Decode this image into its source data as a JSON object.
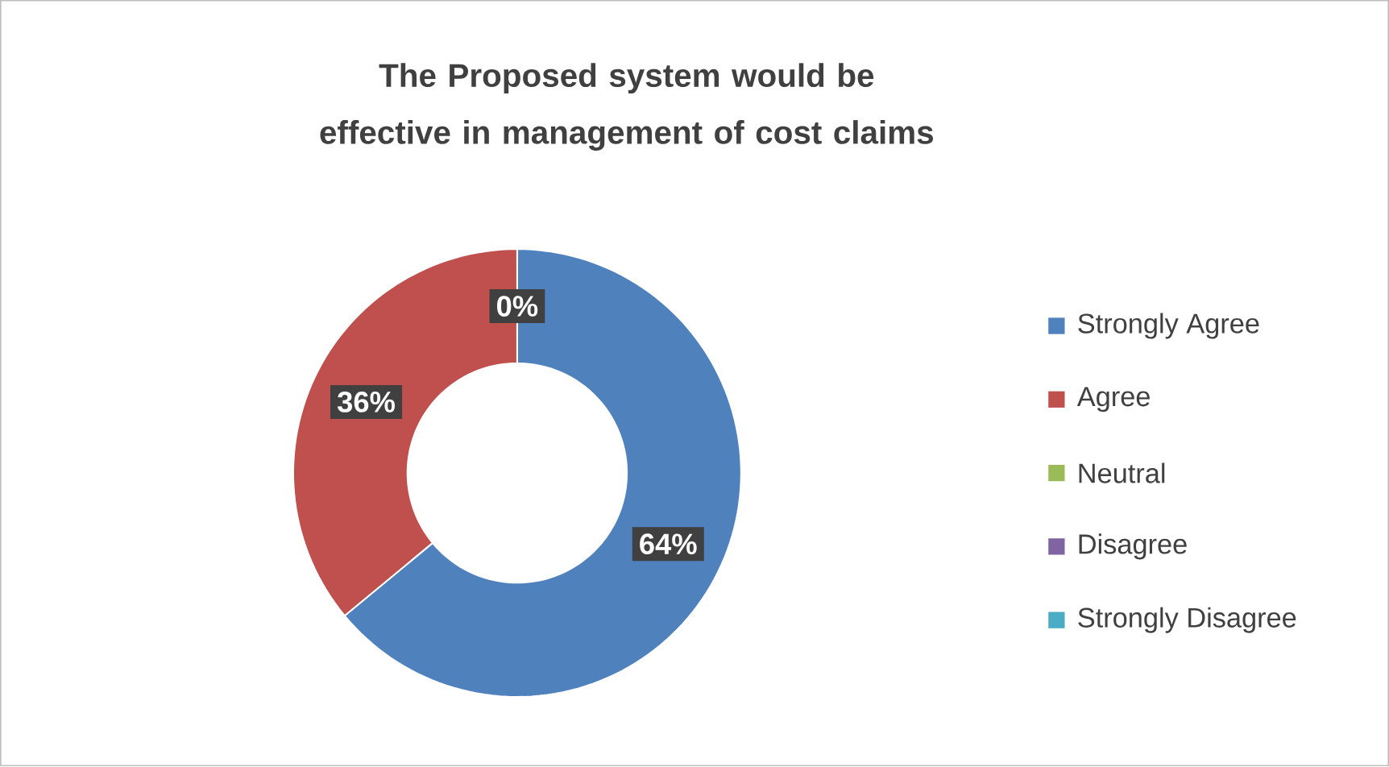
{
  "chart_data": {
    "type": "donut",
    "title": "The Proposed system would be effective in management of cost claims",
    "categories": [
      "Strongly Agree",
      "Agree",
      "Neutral",
      "Disagree",
      "Strongly Disagree"
    ],
    "values": [
      64,
      36,
      0,
      0,
      0
    ],
    "colors": [
      "#4f81bd",
      "#c0504d",
      "#9bbb59",
      "#8064a2",
      "#4bacc6"
    ],
    "value_labels": [
      "64%",
      "36%",
      "0%",
      null,
      null
    ],
    "legend": "right"
  }
}
